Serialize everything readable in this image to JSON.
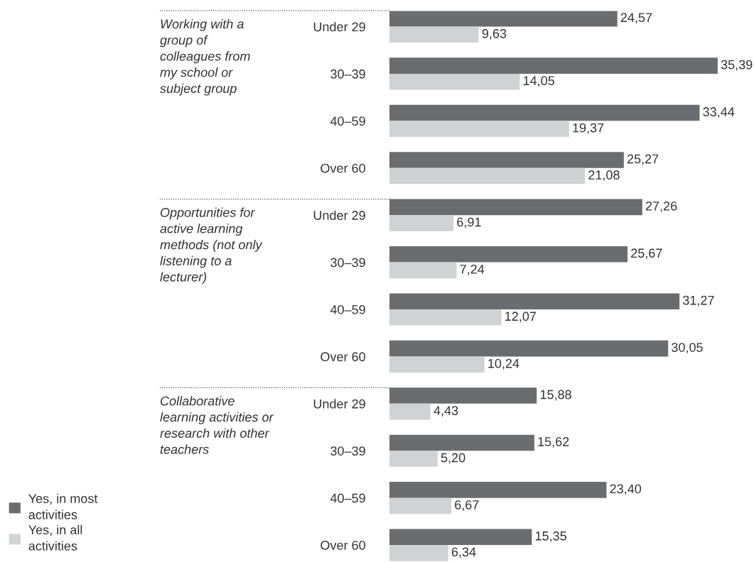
{
  "chart_data": {
    "type": "bar",
    "orientation": "horizontal",
    "categories": [
      "Under 29",
      "30–39",
      "40–59",
      "Over 60",
      "Under 29",
      "30–39",
      "40–59",
      "Over 60",
      "Under 29",
      "30–39",
      "40–59",
      "Over 60"
    ],
    "series": [
      {
        "name": "Yes, in most\nactivities",
        "color": "#6b6c70",
        "values": [
          24.57,
          35.39,
          33.44,
          25.27,
          27.26,
          25.67,
          31.27,
          30.05,
          15.88,
          15.62,
          23.4,
          15.35
        ],
        "value_labels": [
          "24,57",
          "35,39",
          "33,44",
          "25,27",
          "27,26",
          "25,67",
          "31,27",
          "30,05",
          "15,88",
          "15,62",
          "23,40",
          "15,35"
        ]
      },
      {
        "name": "Yes, in all\nactivities",
        "color": "#d1d2d4",
        "values": [
          9.63,
          14.05,
          19.37,
          21.08,
          6.91,
          7.24,
          12.07,
          10.24,
          4.43,
          5.2,
          6.67,
          6.34
        ],
        "value_labels": [
          "9,63",
          "14,05",
          "19,37",
          "21,08",
          "6,91",
          "7,24",
          "12,07",
          "10,24",
          "4,43",
          "5,20",
          "6,67",
          "6,34"
        ]
      }
    ],
    "annotations": [
      "Working with a\ngroup of\ncolleagues from\nmy school or\nsubject group",
      "Opportunities for\nactive learning\nmethods (not only\nlistening to a\nlecturer)",
      "Collaborative\nlearning activities or\nresearch with other\nteachers"
    ],
    "tick_labels": "y",
    "legend": "bottom left"
  }
}
